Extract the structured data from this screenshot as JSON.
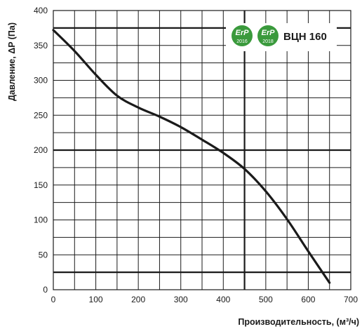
{
  "chart_data": {
    "type": "line",
    "xlabel": "Производительность, (м³/ч)",
    "ylabel": "Давление, ΔP (Па)",
    "xlim": [
      0,
      700
    ],
    "ylim": [
      0,
      400
    ],
    "x_ticks": [
      0,
      100,
      200,
      300,
      400,
      500,
      600,
      700
    ],
    "y_ticks": [
      0,
      50,
      100,
      150,
      200,
      250,
      300,
      350,
      400
    ],
    "x_minor_step": 50,
    "y_minor_step": 25,
    "grid": true,
    "reference_lines": {
      "x": [
        450
      ],
      "y": [
        25,
        200,
        375
      ]
    },
    "series": [
      {
        "x": [
          0,
          50,
          100,
          150,
          200,
          250,
          300,
          350,
          400,
          450,
          500,
          550,
          600,
          650
        ],
        "y": [
          372,
          342,
          308,
          278,
          261,
          248,
          233,
          215,
          196,
          173,
          141,
          101,
          55,
          10
        ]
      }
    ],
    "model_label": "ВЦН 160",
    "badges": [
      {
        "top": "ErP",
        "year": "2016",
        "color": "#3a9a3c"
      },
      {
        "top": "ErP",
        "year": "2018",
        "color": "#3a9a3c"
      }
    ],
    "line_color": "#1a1a1a",
    "grid_color": "#1a1a1a"
  }
}
